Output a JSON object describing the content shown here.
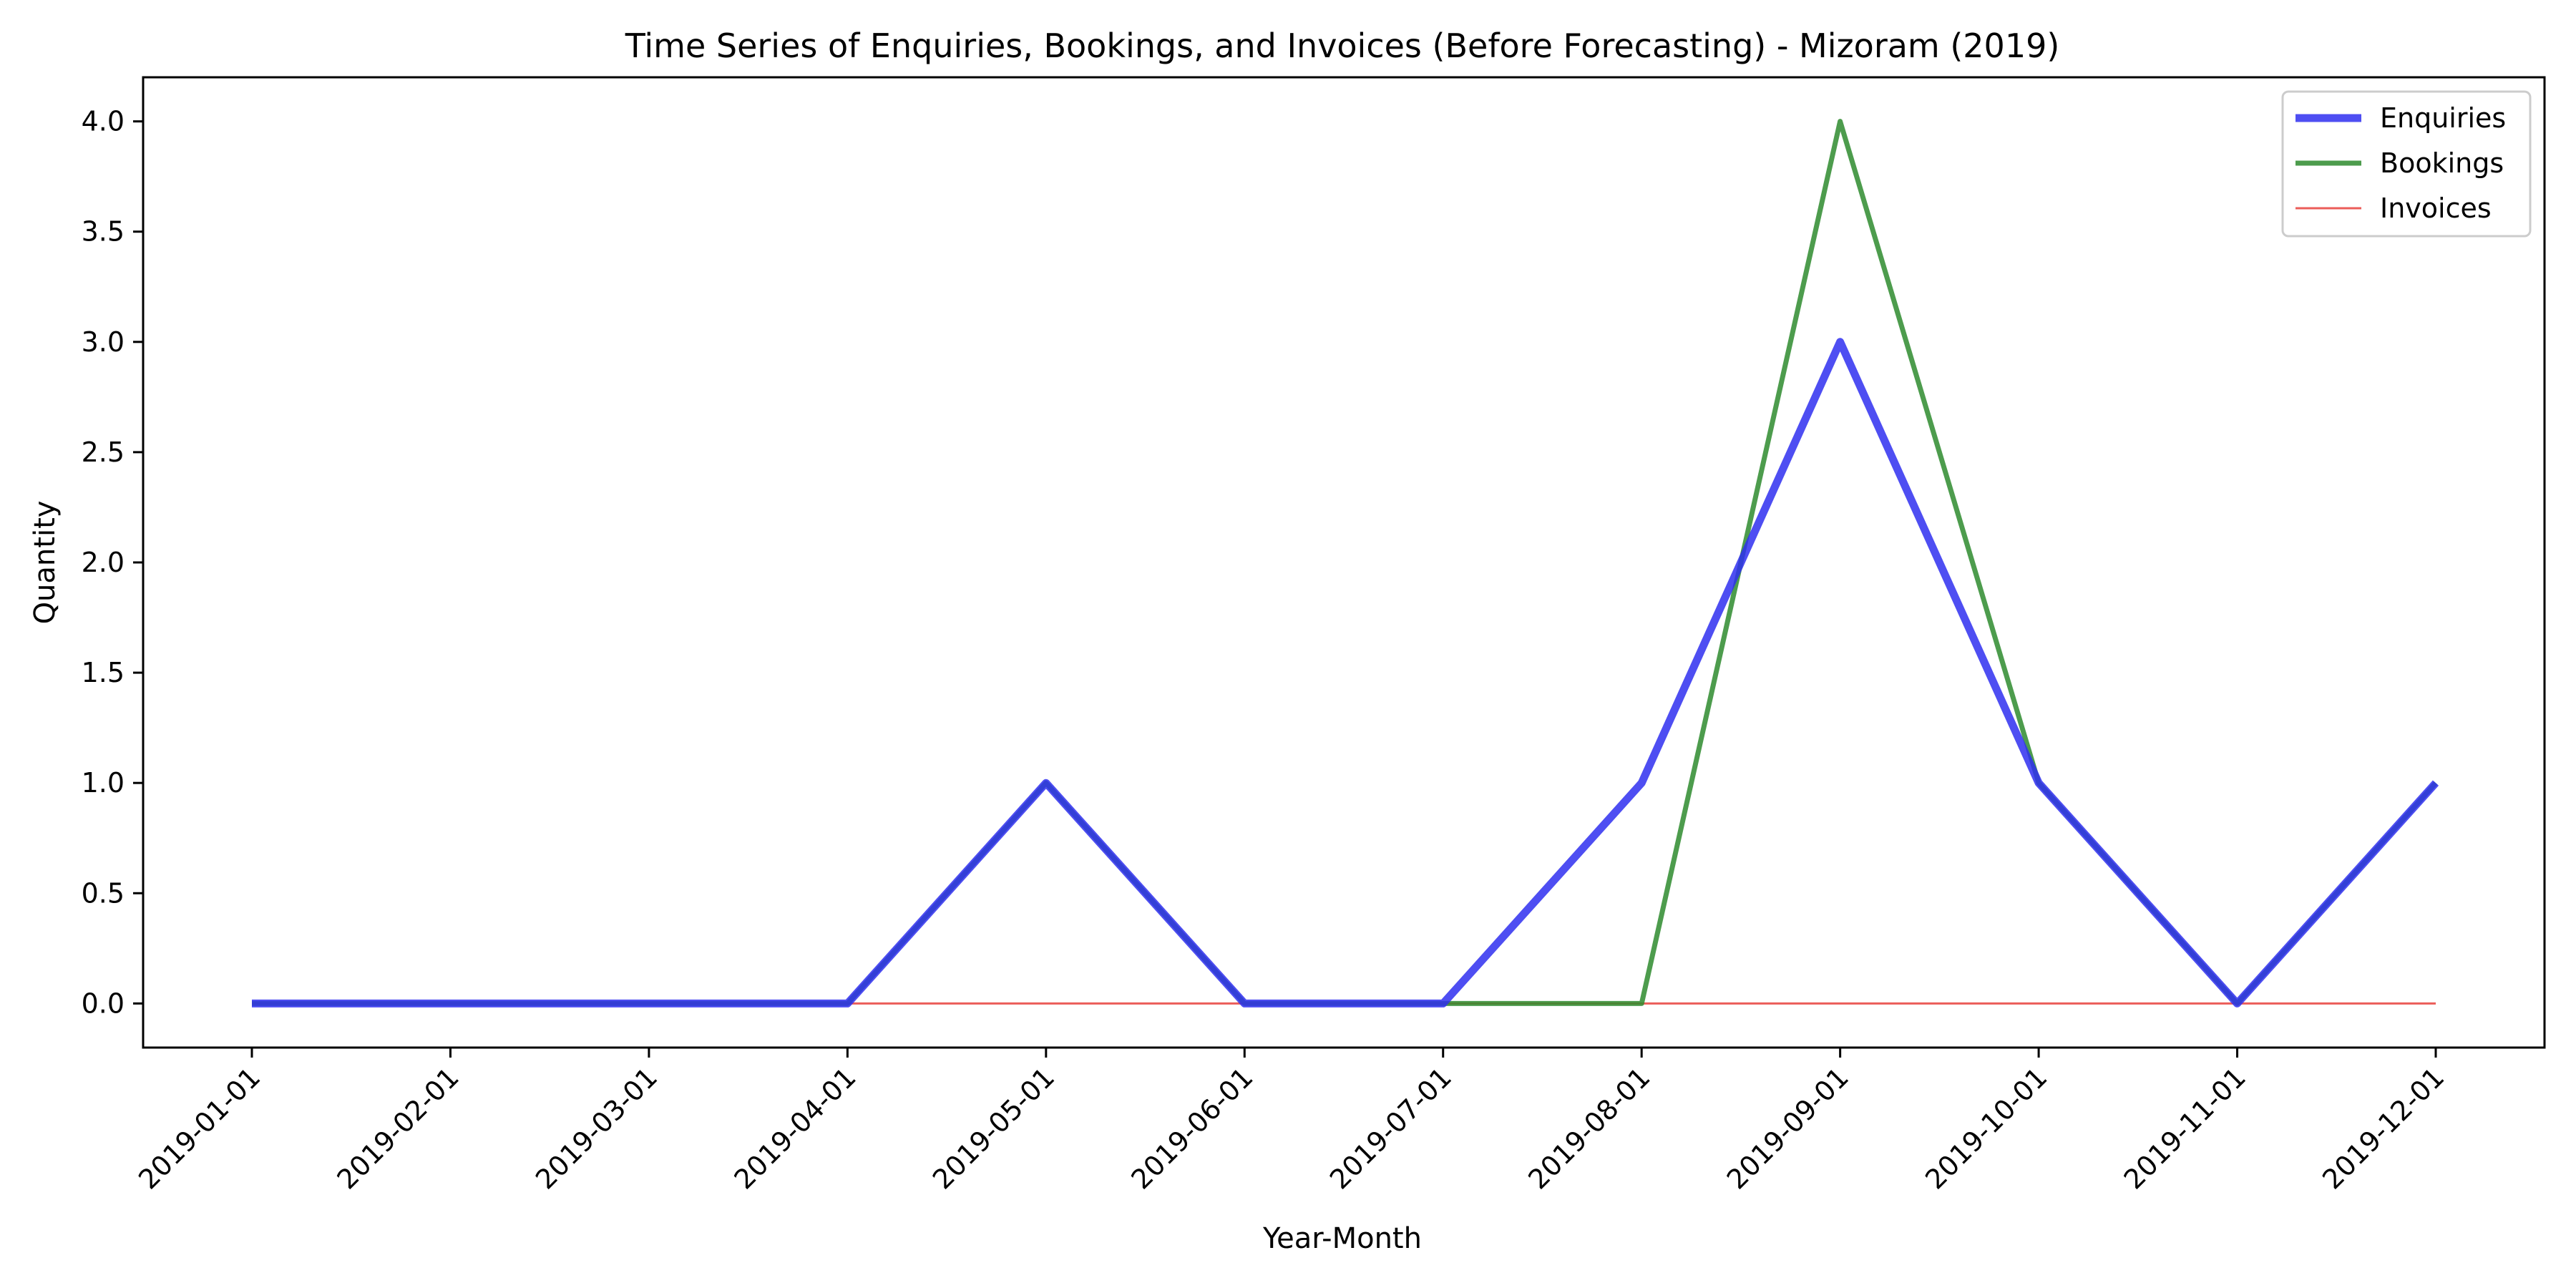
{
  "chart_data": {
    "type": "line",
    "title": "Time Series of Enquiries, Bookings, and Invoices (Before Forecasting) - Mizoram (2019)",
    "xlabel": "Year-Month",
    "ylabel": "Quantity",
    "categories": [
      "2019-01-01",
      "2019-02-01",
      "2019-03-01",
      "2019-04-01",
      "2019-05-01",
      "2019-06-01",
      "2019-07-01",
      "2019-08-01",
      "2019-09-01",
      "2019-10-01",
      "2019-11-01",
      "2019-12-01"
    ],
    "ylim": [
      -0.2,
      4.2
    ],
    "yticks": [
      "0.0",
      "0.5",
      "1.0",
      "1.5",
      "2.0",
      "2.5",
      "3.0",
      "3.5",
      "4.0"
    ],
    "grid": false,
    "legend_position": "top-right",
    "series": [
      {
        "name": "Invoices",
        "color": "#e8413c",
        "values": [
          0,
          0,
          0,
          0,
          0,
          0,
          0,
          0,
          0,
          0,
          0,
          0
        ]
      },
      {
        "name": "Bookings",
        "color": "#2e8b2e",
        "values": [
          0,
          0,
          0,
          0,
          1,
          0,
          0,
          0,
          4,
          1,
          0,
          1
        ]
      },
      {
        "name": "Enquiries",
        "color": "#2f2ff0",
        "values": [
          0,
          0,
          0,
          0,
          1,
          0,
          0,
          1,
          3,
          1,
          0,
          1
        ]
      }
    ],
    "legend_order": [
      "Enquiries",
      "Bookings",
      "Invoices"
    ]
  }
}
